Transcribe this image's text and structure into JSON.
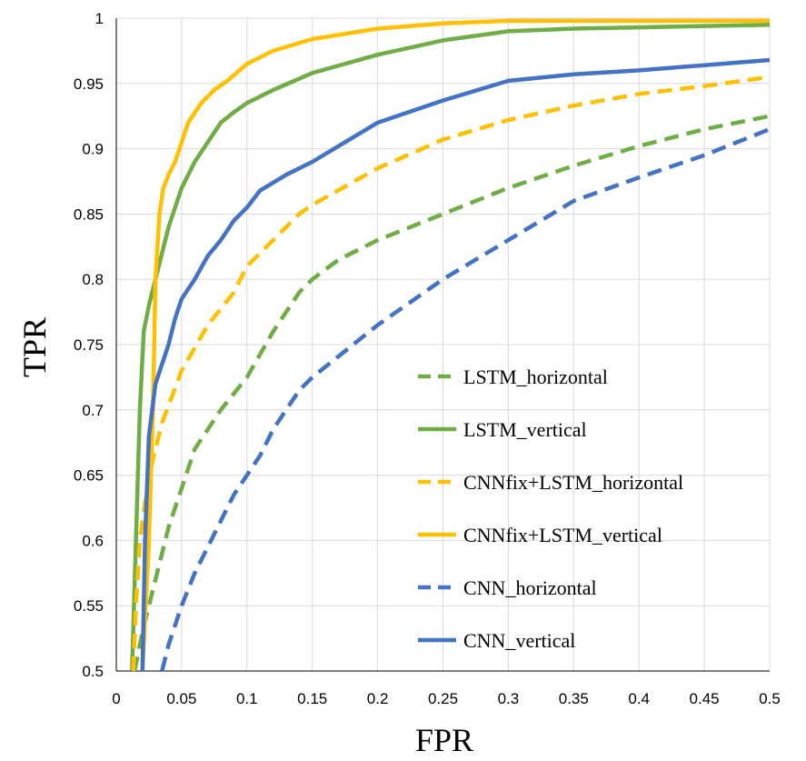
{
  "chart_data": {
    "type": "line",
    "title": "",
    "xlabel": "FPR",
    "ylabel": "TPR",
    "xlim": [
      0,
      0.5
    ],
    "ylim": [
      0.5,
      1
    ],
    "xticks": [
      0,
      0.05,
      0.1,
      0.15,
      0.2,
      0.25,
      0.3,
      0.35,
      0.4,
      0.45,
      0.5
    ],
    "yticks": [
      0.5,
      0.55,
      0.6,
      0.65,
      0.7,
      0.75,
      0.8,
      0.85,
      0.9,
      0.95,
      1
    ],
    "xtick_labels": [
      "0",
      "0.05",
      "0.1",
      "0.15",
      "0.2",
      "0.25",
      "0.3",
      "0.35",
      "0.4",
      "0.45",
      "0.5"
    ],
    "ytick_labels": [
      "0.5",
      "0.55",
      "0.6",
      "0.65",
      "0.7",
      "0.75",
      "0.8",
      "0.85",
      "0.9",
      "0.95",
      "1"
    ],
    "grid": true,
    "legend_position": "right-center",
    "series": [
      {
        "name": "LSTM_horizontal",
        "color": "#70ad47",
        "dashed": true,
        "points": [
          [
            0.014,
            0.5
          ],
          [
            0.02,
            0.53
          ],
          [
            0.03,
            0.57
          ],
          [
            0.04,
            0.61
          ],
          [
            0.05,
            0.64
          ],
          [
            0.06,
            0.67
          ],
          [
            0.08,
            0.7
          ],
          [
            0.1,
            0.725
          ],
          [
            0.12,
            0.76
          ],
          [
            0.14,
            0.79
          ],
          [
            0.15,
            0.8
          ],
          [
            0.17,
            0.815
          ],
          [
            0.2,
            0.83
          ],
          [
            0.25,
            0.85
          ],
          [
            0.3,
            0.87
          ],
          [
            0.35,
            0.887
          ],
          [
            0.4,
            0.902
          ],
          [
            0.45,
            0.915
          ],
          [
            0.5,
            0.925
          ]
        ]
      },
      {
        "name": "LSTM_vertical",
        "color": "#70ad47",
        "dashed": false,
        "points": [
          [
            0.012,
            0.5
          ],
          [
            0.015,
            0.6
          ],
          [
            0.018,
            0.7
          ],
          [
            0.021,
            0.76
          ],
          [
            0.025,
            0.78
          ],
          [
            0.03,
            0.8
          ],
          [
            0.035,
            0.82
          ],
          [
            0.04,
            0.84
          ],
          [
            0.05,
            0.87
          ],
          [
            0.06,
            0.89
          ],
          [
            0.07,
            0.905
          ],
          [
            0.08,
            0.92
          ],
          [
            0.09,
            0.928
          ],
          [
            0.1,
            0.935
          ],
          [
            0.12,
            0.945
          ],
          [
            0.15,
            0.958
          ],
          [
            0.2,
            0.972
          ],
          [
            0.25,
            0.983
          ],
          [
            0.3,
            0.99
          ],
          [
            0.35,
            0.992
          ],
          [
            0.4,
            0.993
          ],
          [
            0.45,
            0.994
          ],
          [
            0.5,
            0.995
          ]
        ]
      },
      {
        "name": "CNNfix+LSTM_horizontal",
        "color": "#ffc000",
        "dashed": true,
        "points": [
          [
            0.013,
            0.5
          ],
          [
            0.015,
            0.55
          ],
          [
            0.018,
            0.6
          ],
          [
            0.025,
            0.65
          ],
          [
            0.035,
            0.69
          ],
          [
            0.05,
            0.73
          ],
          [
            0.07,
            0.765
          ],
          [
            0.09,
            0.79
          ],
          [
            0.1,
            0.81
          ],
          [
            0.12,
            0.83
          ],
          [
            0.14,
            0.85
          ],
          [
            0.15,
            0.857
          ],
          [
            0.2,
            0.885
          ],
          [
            0.25,
            0.907
          ],
          [
            0.3,
            0.922
          ],
          [
            0.35,
            0.933
          ],
          [
            0.4,
            0.942
          ],
          [
            0.45,
            0.948
          ],
          [
            0.5,
            0.955
          ]
        ]
      },
      {
        "name": "CNNfix+LSTM_vertical",
        "color": "#ffc000",
        "dashed": false,
        "points": [
          [
            0.02,
            0.5
          ],
          [
            0.025,
            0.6
          ],
          [
            0.028,
            0.7
          ],
          [
            0.03,
            0.8
          ],
          [
            0.033,
            0.85
          ],
          [
            0.036,
            0.87
          ],
          [
            0.04,
            0.88
          ],
          [
            0.045,
            0.89
          ],
          [
            0.05,
            0.905
          ],
          [
            0.055,
            0.92
          ],
          [
            0.065,
            0.935
          ],
          [
            0.075,
            0.945
          ],
          [
            0.085,
            0.952
          ],
          [
            0.1,
            0.965
          ],
          [
            0.12,
            0.975
          ],
          [
            0.15,
            0.984
          ],
          [
            0.2,
            0.992
          ],
          [
            0.25,
            0.996
          ],
          [
            0.3,
            0.998
          ],
          [
            0.4,
            0.998
          ],
          [
            0.5,
            0.998
          ]
        ]
      },
      {
        "name": "CNN_horizontal",
        "color": "#4472c4",
        "dashed": true,
        "points": [
          [
            0.035,
            0.5
          ],
          [
            0.04,
            0.52
          ],
          [
            0.05,
            0.55
          ],
          [
            0.06,
            0.575
          ],
          [
            0.07,
            0.595
          ],
          [
            0.08,
            0.615
          ],
          [
            0.09,
            0.635
          ],
          [
            0.1,
            0.65
          ],
          [
            0.11,
            0.665
          ],
          [
            0.12,
            0.685
          ],
          [
            0.13,
            0.7
          ],
          [
            0.14,
            0.715
          ],
          [
            0.15,
            0.725
          ],
          [
            0.2,
            0.765
          ],
          [
            0.25,
            0.8
          ],
          [
            0.3,
            0.83
          ],
          [
            0.35,
            0.86
          ],
          [
            0.4,
            0.878
          ],
          [
            0.45,
            0.895
          ],
          [
            0.5,
            0.915
          ]
        ]
      },
      {
        "name": "CNN_vertical",
        "color": "#4472c4",
        "dashed": false,
        "points": [
          [
            0.02,
            0.5
          ],
          [
            0.022,
            0.6
          ],
          [
            0.025,
            0.68
          ],
          [
            0.03,
            0.72
          ],
          [
            0.04,
            0.75
          ],
          [
            0.045,
            0.77
          ],
          [
            0.05,
            0.785
          ],
          [
            0.06,
            0.8
          ],
          [
            0.07,
            0.818
          ],
          [
            0.08,
            0.83
          ],
          [
            0.09,
            0.845
          ],
          [
            0.1,
            0.855
          ],
          [
            0.11,
            0.868
          ],
          [
            0.13,
            0.88
          ],
          [
            0.15,
            0.89
          ],
          [
            0.2,
            0.92
          ],
          [
            0.25,
            0.937
          ],
          [
            0.3,
            0.952
          ],
          [
            0.35,
            0.957
          ],
          [
            0.4,
            0.96
          ],
          [
            0.45,
            0.964
          ],
          [
            0.5,
            0.968
          ]
        ]
      }
    ]
  }
}
